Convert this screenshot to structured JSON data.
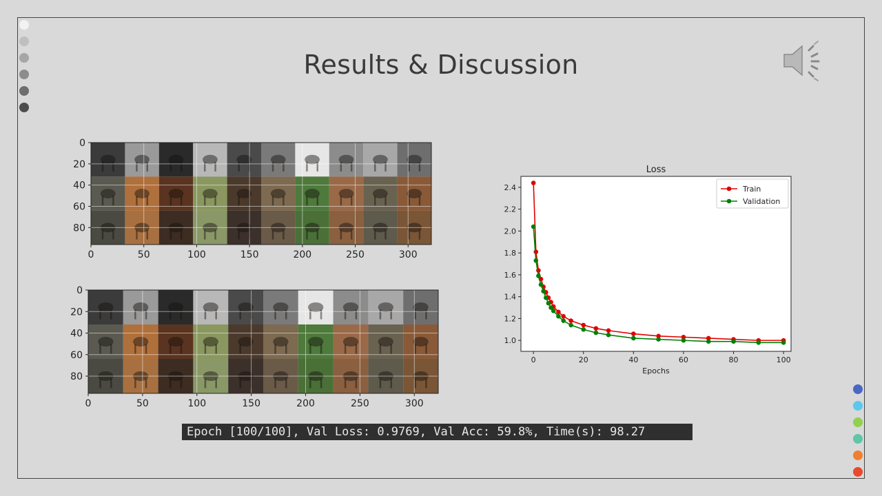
{
  "slide": {
    "title": "Results & Discussion",
    "epoch_log": "Epoch [100/100], Val Loss: 0.9769, Val Acc: 59.8%, Time(s): 98.27"
  },
  "nav_dots_left": [
    "#f2f2f2",
    "#bfbfbf",
    "#a6a6a6",
    "#8c8c8c",
    "#6e6e6e",
    "#4d4d4d"
  ],
  "nav_dots_right": [
    "#4a67c6",
    "#5bc8ef",
    "#92d050",
    "#5fc6a8",
    "#f07f2f",
    "#e84a2c"
  ],
  "speaker_icon": "speaker-sound-icon",
  "image_grids": [
    {
      "name": "image-grid-top",
      "x_ticks": [
        "0",
        "50",
        "100",
        "150",
        "200",
        "250",
        "300"
      ],
      "y_ticks": [
        "0",
        "20",
        "40",
        "60",
        "80"
      ]
    },
    {
      "name": "image-grid-bottom",
      "x_ticks": [
        "0",
        "50",
        "100",
        "150",
        "200",
        "250",
        "300"
      ],
      "y_ticks": [
        "0",
        "20",
        "40",
        "60",
        "80"
      ]
    }
  ],
  "chart_data": {
    "type": "line",
    "title": "Loss",
    "xlabel": "Epochs",
    "ylabel": "",
    "xlim": [
      -5,
      103
    ],
    "ylim": [
      0.9,
      2.5
    ],
    "x_ticks": [
      0,
      20,
      40,
      60,
      80,
      100
    ],
    "y_ticks": [
      1.0,
      1.2,
      1.4,
      1.6,
      1.8,
      2.0,
      2.2,
      2.4
    ],
    "legend_position": "top-right",
    "grid": false,
    "series": [
      {
        "name": "Train",
        "color": "#e00000",
        "x": [
          0,
          1,
          2,
          3,
          4,
          5,
          6,
          7,
          8,
          10,
          12,
          15,
          20,
          25,
          30,
          40,
          50,
          60,
          70,
          80,
          90,
          100
        ],
        "values": [
          2.44,
          1.81,
          1.64,
          1.56,
          1.49,
          1.44,
          1.39,
          1.35,
          1.31,
          1.26,
          1.22,
          1.18,
          1.14,
          1.11,
          1.09,
          1.06,
          1.04,
          1.03,
          1.02,
          1.01,
          1.0,
          1.0
        ]
      },
      {
        "name": "Validation",
        "color": "#008000",
        "x": [
          0,
          1,
          2,
          3,
          4,
          5,
          6,
          7,
          8,
          10,
          12,
          15,
          20,
          25,
          30,
          40,
          50,
          60,
          70,
          80,
          90,
          100
        ],
        "values": [
          2.04,
          1.73,
          1.59,
          1.51,
          1.45,
          1.39,
          1.34,
          1.3,
          1.27,
          1.22,
          1.18,
          1.14,
          1.1,
          1.07,
          1.05,
          1.02,
          1.01,
          1.0,
          0.99,
          0.99,
          0.98,
          0.98
        ]
      }
    ]
  }
}
